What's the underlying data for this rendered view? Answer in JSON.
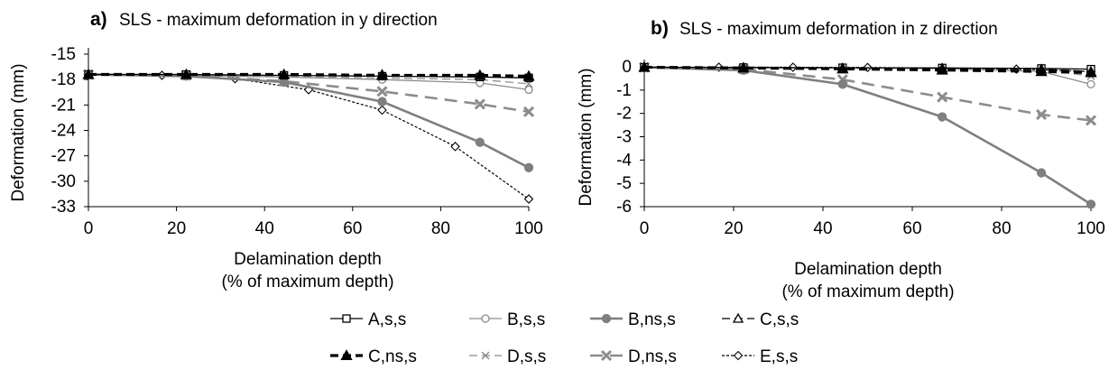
{
  "chart_data": [
    {
      "type": "line",
      "panel_label": "a)",
      "title": "SLS - maximum deformation in y direction",
      "xlabel": "Delamination depth",
      "xlabel_sub": "(% of maximum depth)",
      "ylabel": "Deformation (mm)",
      "xlim": [
        0,
        100
      ],
      "ylim": [
        -33,
        -15
      ],
      "xticks": [
        0,
        20,
        40,
        60,
        80,
        100
      ],
      "yticks": [
        -15,
        -18,
        -21,
        -24,
        -27,
        -30,
        -33
      ],
      "grid": false,
      "series": [
        {
          "name": "A,s,s",
          "x": [
            0,
            22.2,
            44.4,
            66.7,
            88.9,
            100
          ],
          "y": [
            -17.4,
            -17.4,
            -17.5,
            -17.6,
            -17.7,
            -17.8
          ]
        },
        {
          "name": "B,s,s",
          "x": [
            0,
            22.2,
            44.4,
            66.7,
            88.9,
            100
          ],
          "y": [
            -17.4,
            -17.5,
            -17.7,
            -18.0,
            -18.4,
            -19.2
          ]
        },
        {
          "name": "B,ns,s",
          "x": [
            0,
            22.2,
            44.4,
            66.7,
            88.9,
            100
          ],
          "y": [
            -17.4,
            -17.6,
            -18.3,
            -20.6,
            -25.4,
            -28.4
          ]
        },
        {
          "name": "C,s,s",
          "x": [
            0,
            22.2,
            44.4,
            66.7,
            88.9,
            100
          ],
          "y": [
            -17.4,
            -17.4,
            -17.4,
            -17.4,
            -17.5,
            -17.6
          ]
        },
        {
          "name": "C,ns,s",
          "x": [
            0,
            22.2,
            44.4,
            66.7,
            88.9,
            100
          ],
          "y": [
            -17.4,
            -17.4,
            -17.4,
            -17.5,
            -17.5,
            -17.6
          ]
        },
        {
          "name": "D,s,s",
          "x": [
            0,
            22.2,
            44.4,
            66.7,
            88.9,
            100
          ],
          "y": [
            -17.4,
            -17.4,
            -17.6,
            -17.8,
            -18.0,
            -18.5
          ]
        },
        {
          "name": "D,ns,s",
          "x": [
            0,
            22.2,
            44.4,
            66.7,
            88.9,
            100
          ],
          "y": [
            -17.4,
            -17.5,
            -18.2,
            -19.4,
            -20.9,
            -21.8
          ]
        },
        {
          "name": "E,s,s",
          "x": [
            0,
            16.7,
            33.3,
            50,
            66.7,
            83.3,
            100
          ],
          "y": [
            -17.4,
            -17.5,
            -17.9,
            -19.2,
            -21.6,
            -25.9,
            -32.1
          ]
        }
      ]
    },
    {
      "type": "line",
      "panel_label": "b)",
      "title": "SLS - maximum deformation in z direction",
      "xlabel": "Delamination depth",
      "xlabel_sub": "(% of maximum depth)",
      "ylabel": "Deformation (mm)",
      "xlim": [
        0,
        100
      ],
      "ylim": [
        -6,
        0
      ],
      "xticks": [
        0,
        20,
        40,
        60,
        80,
        100
      ],
      "yticks": [
        0,
        -1,
        -2,
        -3,
        -4,
        -5,
        -6
      ],
      "grid": false,
      "series": [
        {
          "name": "A,s,s",
          "x": [
            0,
            22.2,
            44.4,
            66.7,
            88.9,
            100
          ],
          "y": [
            -0.02,
            -0.03,
            -0.04,
            -0.05,
            -0.07,
            -0.1
          ]
        },
        {
          "name": "B,s,s",
          "x": [
            0,
            22.2,
            44.4,
            66.7,
            88.9,
            100
          ],
          "y": [
            -0.02,
            -0.04,
            -0.06,
            -0.08,
            -0.2,
            -0.75
          ]
        },
        {
          "name": "B,ns,s",
          "x": [
            0,
            22.2,
            44.4,
            66.7,
            88.9,
            100
          ],
          "y": [
            -0.02,
            -0.15,
            -0.75,
            -2.15,
            -4.55,
            -5.9
          ]
        },
        {
          "name": "C,s,s",
          "x": [
            0,
            22.2,
            44.4,
            66.7,
            88.9,
            100
          ],
          "y": [
            -0.02,
            -0.03,
            -0.05,
            -0.06,
            -0.1,
            -0.2
          ]
        },
        {
          "name": "C,ns,s",
          "x": [
            0,
            22.2,
            44.4,
            66.7,
            88.9,
            100
          ],
          "y": [
            -0.02,
            -0.05,
            -0.09,
            -0.14,
            -0.2,
            -0.25
          ]
        },
        {
          "name": "D,s,s",
          "x": [
            0,
            22.2,
            44.4,
            66.7,
            88.9,
            100
          ],
          "y": [
            -0.02,
            -0.03,
            -0.05,
            -0.08,
            -0.12,
            -0.4
          ]
        },
        {
          "name": "D,ns,s",
          "x": [
            0,
            22.2,
            44.4,
            66.7,
            88.9,
            100
          ],
          "y": [
            -0.02,
            -0.1,
            -0.55,
            -1.3,
            -2.05,
            -2.3
          ]
        },
        {
          "name": "E,s,s",
          "x": [
            0,
            16.7,
            33.3,
            50,
            66.7,
            83.3,
            100
          ],
          "y": [
            -0.02,
            -0.02,
            -0.02,
            -0.03,
            -0.05,
            -0.1,
            -0.2
          ]
        }
      ]
    }
  ],
  "legend": {
    "entries": [
      "A,s,s",
      "B,s,s",
      "B,ns,s",
      "C,s,s",
      "C,ns,s",
      "D,s,s",
      "D,ns,s",
      "E,s,s"
    ]
  }
}
